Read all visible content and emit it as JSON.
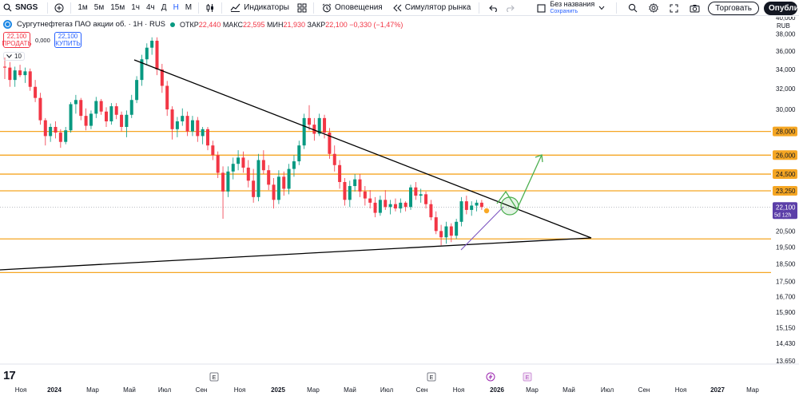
{
  "toolbar": {
    "symbol": "SNGS",
    "add_symbol_icon": "plus-circle-icon",
    "timeframes": [
      "1м",
      "5м",
      "15м",
      "1ч",
      "4ч",
      "Д",
      "Н",
      "М"
    ],
    "active_timeframe": "Н",
    "indicators_label": "Индикаторы",
    "alerts_label": "Оповещения",
    "replay_label": "Симулятор рынка",
    "layout_name": "Без названия",
    "layout_saved": "Сохранить",
    "trade_label": "Торговать",
    "publish_label": "Опубликовать"
  },
  "legend": {
    "title": "Сургутнефтегаз ПАО акции об. · 1Н · RUS",
    "open_label": "ОТКР",
    "open": "22,440",
    "high_label": "МАКС",
    "high": "22,595",
    "low_label": "МИН",
    "low": "21,930",
    "close_label": "ЗАКР",
    "close": "22,100",
    "change": "−0,330 (−1,47%)",
    "sell_price": "22,100",
    "sell_label": "ПРОДАТЬ",
    "buy_price": "22,100",
    "buy_label": "КУПИТЬ",
    "spread": "0,000",
    "indicators_count": "10"
  },
  "colors": {
    "up": "#089981",
    "down": "#f23645",
    "level": "#f5a623",
    "trendline": "#000000",
    "projection": "#4caf50",
    "accent": "#2962ff",
    "price_tag": "#5b3ea8"
  },
  "chart_data": {
    "type": "candlestick",
    "currency": "RUB",
    "y_axis": {
      "scale": "log",
      "ylim": [
        13000,
        42500
      ],
      "ticks": [
        "13,650",
        "14,430",
        "15,150",
        "15,900",
        "16,700",
        "17,500",
        "18,500",
        "19,500",
        "20,500",
        "21,500",
        "23,250",
        "24,500",
        "26,000",
        "28,000",
        "30,000",
        "32,000",
        "34,000",
        "36,000",
        "38,000",
        "40,000"
      ]
    },
    "x_axis": {
      "labels": [
        "Ноя",
        "2024",
        "Мар",
        "Май",
        "Июл",
        "Сен",
        "Ноя",
        "2025",
        "Мар",
        "Май",
        "Июл",
        "Сен",
        "Ноя",
        "2026",
        "Мар",
        "Май",
        "Июл",
        "Сен",
        "Ноя",
        "2027",
        "Мар"
      ],
      "events": [
        "earnings",
        "earnings",
        "dividend",
        "earnings"
      ]
    },
    "horizontal_levels": [
      "28,000",
      "26,000",
      "24,500",
      "23,250",
      "20,000",
      "18,000"
    ],
    "last_price": {
      "value": "22,100",
      "countdown": "5d 12h"
    },
    "candles": [
      [
        34.3,
        35.3,
        33.0,
        34.2
      ],
      [
        34.2,
        34.8,
        32.2,
        32.9
      ],
      [
        32.9,
        34.3,
        32.2,
        33.9
      ],
      [
        33.9,
        34.5,
        33.2,
        33.4
      ],
      [
        33.4,
        34.2,
        32.6,
        33.8
      ],
      [
        33.8,
        34.1,
        31.8,
        32.2
      ],
      [
        32.2,
        32.9,
        30.7,
        31.1
      ],
      [
        31.1,
        31.6,
        28.6,
        29.0
      ],
      [
        29.0,
        29.2,
        26.8,
        27.6
      ],
      [
        27.6,
        28.7,
        27.1,
        28.4
      ],
      [
        28.4,
        28.9,
        27.4,
        27.9
      ],
      [
        27.9,
        28.2,
        26.6,
        27.1
      ],
      [
        27.1,
        28.4,
        26.9,
        28.1
      ],
      [
        28.1,
        30.7,
        27.9,
        30.5
      ],
      [
        30.5,
        31.4,
        29.6,
        30.9
      ],
      [
        30.9,
        31.1,
        29.0,
        29.4
      ],
      [
        29.4,
        30.1,
        28.1,
        28.5
      ],
      [
        28.5,
        29.9,
        28.2,
        29.6
      ],
      [
        29.6,
        31.2,
        29.2,
        30.8
      ],
      [
        30.8,
        31.0,
        29.5,
        29.8
      ],
      [
        29.8,
        30.2,
        28.4,
        28.9
      ],
      [
        28.9,
        30.6,
        28.6,
        30.3
      ],
      [
        30.3,
        30.6,
        29.1,
        29.5
      ],
      [
        29.5,
        29.8,
        28.0,
        28.4
      ],
      [
        28.4,
        29.9,
        27.5,
        29.5
      ],
      [
        29.5,
        31.4,
        29.2,
        30.9
      ],
      [
        30.9,
        33.3,
        30.6,
        32.9
      ],
      [
        32.9,
        35.6,
        32.3,
        35.1
      ],
      [
        35.1,
        36.9,
        34.5,
        36.4
      ],
      [
        36.4,
        37.6,
        35.6,
        37.2
      ],
      [
        37.2,
        37.6,
        33.4,
        34.0
      ],
      [
        34.0,
        34.6,
        31.6,
        32.3
      ],
      [
        32.3,
        32.8,
        29.4,
        30.0
      ],
      [
        30.0,
        30.3,
        27.3,
        28.2
      ],
      [
        28.2,
        29.3,
        27.5,
        28.9
      ],
      [
        28.9,
        30.1,
        28.5,
        29.4
      ],
      [
        29.4,
        29.8,
        27.6,
        28.0
      ],
      [
        28.0,
        29.4,
        27.6,
        29.0
      ],
      [
        29.0,
        29.3,
        27.1,
        27.6
      ],
      [
        27.6,
        28.4,
        26.9,
        28.2
      ],
      [
        28.2,
        28.4,
        26.4,
        26.8
      ],
      [
        26.8,
        27.2,
        25.6,
        26.0
      ],
      [
        26.0,
        26.3,
        24.2,
        24.6
      ],
      [
        24.6,
        25.1,
        21.3,
        23.2
      ],
      [
        23.2,
        25.1,
        22.8,
        24.7
      ],
      [
        24.7,
        25.8,
        24.1,
        25.3
      ],
      [
        25.3,
        26.4,
        24.8,
        25.8
      ],
      [
        25.8,
        26.3,
        24.6,
        25.0
      ],
      [
        25.0,
        25.6,
        23.5,
        24.0
      ],
      [
        24.0,
        24.9,
        22.4,
        22.8
      ],
      [
        22.8,
        26.1,
        22.5,
        25.6
      ],
      [
        25.6,
        26.4,
        24.5,
        24.8
      ],
      [
        24.8,
        25.2,
        23.3,
        23.7
      ],
      [
        23.7,
        24.2,
        22.0,
        22.6
      ],
      [
        22.6,
        24.8,
        22.3,
        24.3
      ],
      [
        24.3,
        24.7,
        22.9,
        23.4
      ],
      [
        23.4,
        25.3,
        23.0,
        24.9
      ],
      [
        24.9,
        26.0,
        24.3,
        25.5
      ],
      [
        25.5,
        27.2,
        25.2,
        26.8
      ],
      [
        26.8,
        29.6,
        26.5,
        29.2
      ],
      [
        29.2,
        30.4,
        28.1,
        28.6
      ],
      [
        28.6,
        29.2,
        27.2,
        27.8
      ],
      [
        27.8,
        29.6,
        27.6,
        29.2
      ],
      [
        29.2,
        29.5,
        27.4,
        27.9
      ],
      [
        27.9,
        28.3,
        25.7,
        26.1
      ],
      [
        26.1,
        26.8,
        24.7,
        25.2
      ],
      [
        25.2,
        25.6,
        23.4,
        23.9
      ],
      [
        23.9,
        24.2,
        22.2,
        22.6
      ],
      [
        22.6,
        24.0,
        22.1,
        23.6
      ],
      [
        23.6,
        24.5,
        23.2,
        24.1
      ],
      [
        24.1,
        24.5,
        22.8,
        23.2
      ],
      [
        23.2,
        23.6,
        22.2,
        22.7
      ],
      [
        22.7,
        23.3,
        22.0,
        22.4
      ],
      [
        22.4,
        22.8,
        21.4,
        21.7
      ],
      [
        21.7,
        22.9,
        21.5,
        22.6
      ],
      [
        22.6,
        23.3,
        21.9,
        22.1
      ],
      [
        22.1,
        22.6,
        21.6,
        22.3
      ],
      [
        22.3,
        22.7,
        21.8,
        22.0
      ],
      [
        22.0,
        22.7,
        21.7,
        22.4
      ],
      [
        22.4,
        22.5,
        21.8,
        22.1
      ],
      [
        22.1,
        23.7,
        21.9,
        23.5
      ],
      [
        23.5,
        23.9,
        22.6,
        22.9
      ],
      [
        22.9,
        23.4,
        22.4,
        23.0
      ],
      [
        23.0,
        23.2,
        22.0,
        22.3
      ],
      [
        22.3,
        22.6,
        21.2,
        21.4
      ],
      [
        21.4,
        21.8,
        20.3,
        20.5
      ],
      [
        20.5,
        20.9,
        19.6,
        20.1
      ],
      [
        20.1,
        21.1,
        19.7,
        20.8
      ],
      [
        20.8,
        21.0,
        19.8,
        20.2
      ],
      [
        20.2,
        21.3,
        20.0,
        21.1
      ],
      [
        21.1,
        22.8,
        20.8,
        22.5
      ],
      [
        22.5,
        22.9,
        21.6,
        21.9
      ],
      [
        21.9,
        22.5,
        21.5,
        22.2
      ],
      [
        22.2,
        22.6,
        21.8,
        22.4
      ],
      [
        22.4,
        22.6,
        21.9,
        22.1
      ]
    ]
  }
}
